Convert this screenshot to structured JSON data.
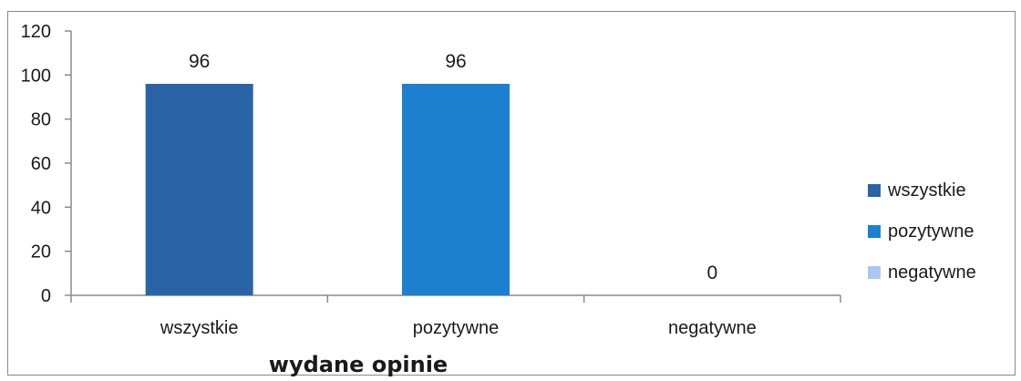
{
  "chart_data": {
    "type": "bar",
    "categories": [
      "wszystkie",
      "pozytywne",
      "negatywne"
    ],
    "values": [
      96,
      96,
      0
    ],
    "data_labels": [
      "96",
      "96",
      "0"
    ],
    "xlabel": "wydane opinie",
    "ylabel": "",
    "ylim": [
      0,
      120
    ],
    "yticks": [
      "0",
      "20",
      "40",
      "60",
      "80",
      "100",
      "120"
    ],
    "grid": false,
    "legend_position": "right",
    "legend": [
      {
        "label": "wszystkie",
        "color": "#2a64a6"
      },
      {
        "label": "pozytywne",
        "color": "#1d7fd0"
      },
      {
        "label": "negatywne",
        "color": "#a9c8f0"
      }
    ],
    "colors": [
      "#2a64a6",
      "#1d7fd0",
      "#a9c8f0"
    ]
  }
}
